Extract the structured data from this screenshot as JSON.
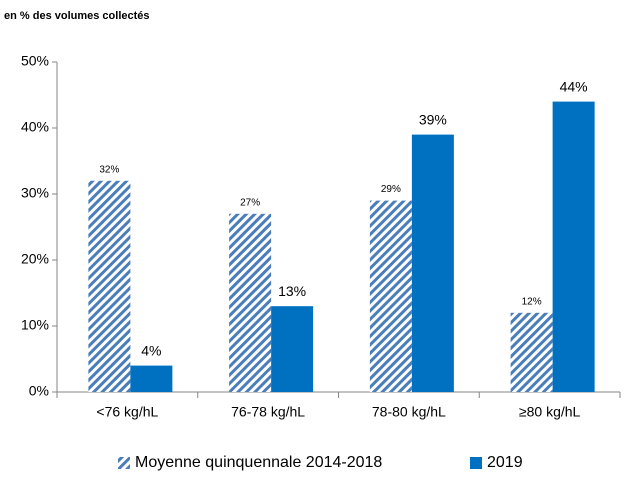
{
  "chart_data": {
    "type": "bar",
    "subtitle": "en % des volumes collectés",
    "categories": [
      "<76 kg/hL",
      "76-78 kg/hL",
      "78-80 kg/hL",
      "≥80 kg/hL"
    ],
    "series": [
      {
        "name": "Moyenne quinquennale 2014-2018",
        "color": "#4a7ebb",
        "pattern": "hatch",
        "values": [
          32,
          27,
          29,
          12
        ],
        "value_labels": [
          "32%",
          "27%",
          "29%",
          "12%"
        ]
      },
      {
        "name": "2019",
        "color": "#0070c0",
        "values": [
          4,
          13,
          39,
          44
        ],
        "value_labels": [
          "4%",
          "13%",
          "39%",
          "44%"
        ]
      }
    ],
    "ylim": [
      0,
      50
    ],
    "yticks": [
      {
        "value": 0,
        "label": "0%"
      },
      {
        "value": 10,
        "label": "10%"
      },
      {
        "value": 20,
        "label": "20%"
      },
      {
        "value": 30,
        "label": "30%"
      },
      {
        "value": 40,
        "label": "40%"
      },
      {
        "value": 50,
        "label": "50%"
      }
    ],
    "grid": false,
    "legend": "bottom"
  }
}
